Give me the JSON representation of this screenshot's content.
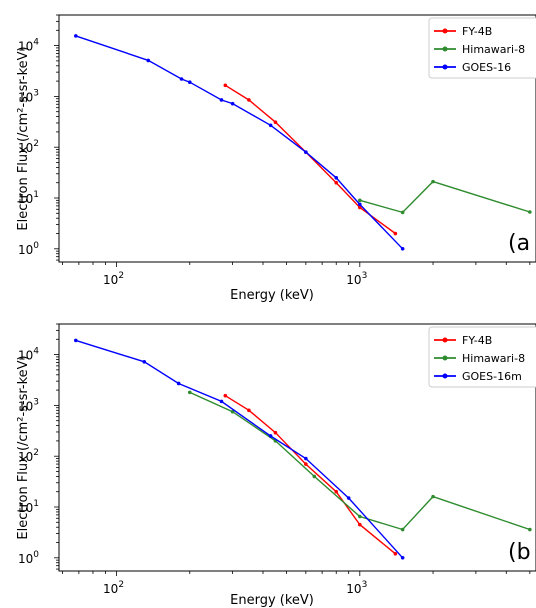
{
  "chart_data": [
    {
      "type": "line",
      "panel_label": "(a",
      "xlabel": "Energy (keV)",
      "ylabel": "Electron Flux (/cm²-s-sr-keV)",
      "xscale": "log",
      "yscale": "log",
      "xlim": [
        58,
        5300
      ],
      "ylim": [
        0.55,
        40000
      ],
      "x_tick_labels": [
        {
          "value": 100,
          "base": "10",
          "exp": "2"
        },
        {
          "value": 1000,
          "base": "10",
          "exp": "3"
        }
      ],
      "y_tick_labels": [
        {
          "value": 1,
          "base": "10",
          "exp": "0"
        },
        {
          "value": 10,
          "base": "10",
          "exp": "1"
        },
        {
          "value": 100,
          "base": "10",
          "exp": "2"
        },
        {
          "value": 1000,
          "base": "10",
          "exp": "3"
        },
        {
          "value": 10000,
          "base": "10",
          "exp": "4"
        }
      ],
      "legend_position": "top-right",
      "series": [
        {
          "name": "FY-4B",
          "color": "#ff0000",
          "x": [
            280,
            350,
            450,
            600,
            800,
            1000,
            1400
          ],
          "y": [
            1650,
            850,
            310,
            80,
            20,
            6.5,
            2.0
          ]
        },
        {
          "name": "Himawari-8",
          "color": "#2e8b2e",
          "x": [
            1000,
            1500,
            2000,
            5000
          ],
          "y": [
            9,
            5.2,
            21,
            5.3
          ]
        },
        {
          "name": "GOES-16",
          "color": "#0000ff",
          "x": [
            68,
            135,
            185,
            200,
            270,
            300,
            430,
            600,
            800,
            1000,
            1500
          ],
          "y": [
            15500,
            5100,
            2200,
            1900,
            850,
            720,
            270,
            80,
            25,
            7.5,
            1.0
          ]
        }
      ]
    },
    {
      "type": "line",
      "panel_label": "(b",
      "xlabel": "Energy (keV)",
      "ylabel": "Electron Flux (/cm²-s-sr-keV)",
      "xscale": "log",
      "yscale": "log",
      "xlim": [
        58,
        5300
      ],
      "ylim": [
        0.55,
        40000
      ],
      "x_tick_labels": [
        {
          "value": 100,
          "base": "10",
          "exp": "2"
        },
        {
          "value": 1000,
          "base": "10",
          "exp": "3"
        }
      ],
      "y_tick_labels": [
        {
          "value": 1,
          "base": "10",
          "exp": "0"
        },
        {
          "value": 10,
          "base": "10",
          "exp": "1"
        },
        {
          "value": 100,
          "base": "10",
          "exp": "2"
        },
        {
          "value": 1000,
          "base": "10",
          "exp": "3"
        },
        {
          "value": 10000,
          "base": "10",
          "exp": "4"
        }
      ],
      "legend_position": "top-right",
      "series": [
        {
          "name": "FY-4B",
          "color": "#ff0000",
          "x": [
            280,
            350,
            450,
            600,
            800,
            1000,
            1400
          ],
          "y": [
            1550,
            800,
            290,
            70,
            20,
            4.5,
            1.2
          ]
        },
        {
          "name": "Himawari-8",
          "color": "#2e8b2e",
          "x": [
            200,
            300,
            450,
            650,
            1000,
            1500,
            2000,
            5000
          ],
          "y": [
            1800,
            750,
            200,
            40,
            6.5,
            3.6,
            16,
            3.6
          ]
        },
        {
          "name": "GOES-16m",
          "color": "#0000ff",
          "x": [
            68,
            130,
            180,
            270,
            430,
            600,
            900,
            1500
          ],
          "y": [
            19000,
            7200,
            2700,
            1200,
            250,
            90,
            15,
            1.0
          ]
        }
      ]
    }
  ]
}
